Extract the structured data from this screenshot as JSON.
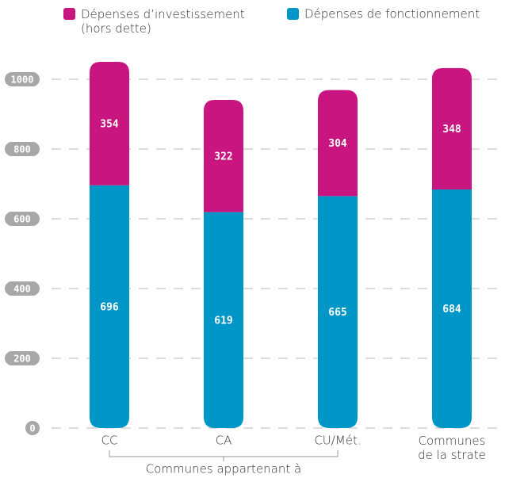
{
  "chart_data": {
    "type": "stacked_bar",
    "categories": [
      "CC",
      "CA",
      "CU/Mét.",
      "Communes\nde la strate"
    ],
    "series": [
      {
        "name": "Dépenses d’investissement\n(hors dette)",
        "color": "#c8157f",
        "values": [
          354,
          322,
          304,
          348
        ]
      },
      {
        "name": "Dépenses de fonctionnement",
        "color": "#0096c8",
        "values": [
          696,
          619,
          665,
          684
        ]
      }
    ],
    "ylim": [
      0,
      1100
    ],
    "yticks": [
      0,
      200,
      400,
      600,
      800,
      1000
    ],
    "grid": true,
    "annotation": "Communes appartenant à"
  }
}
